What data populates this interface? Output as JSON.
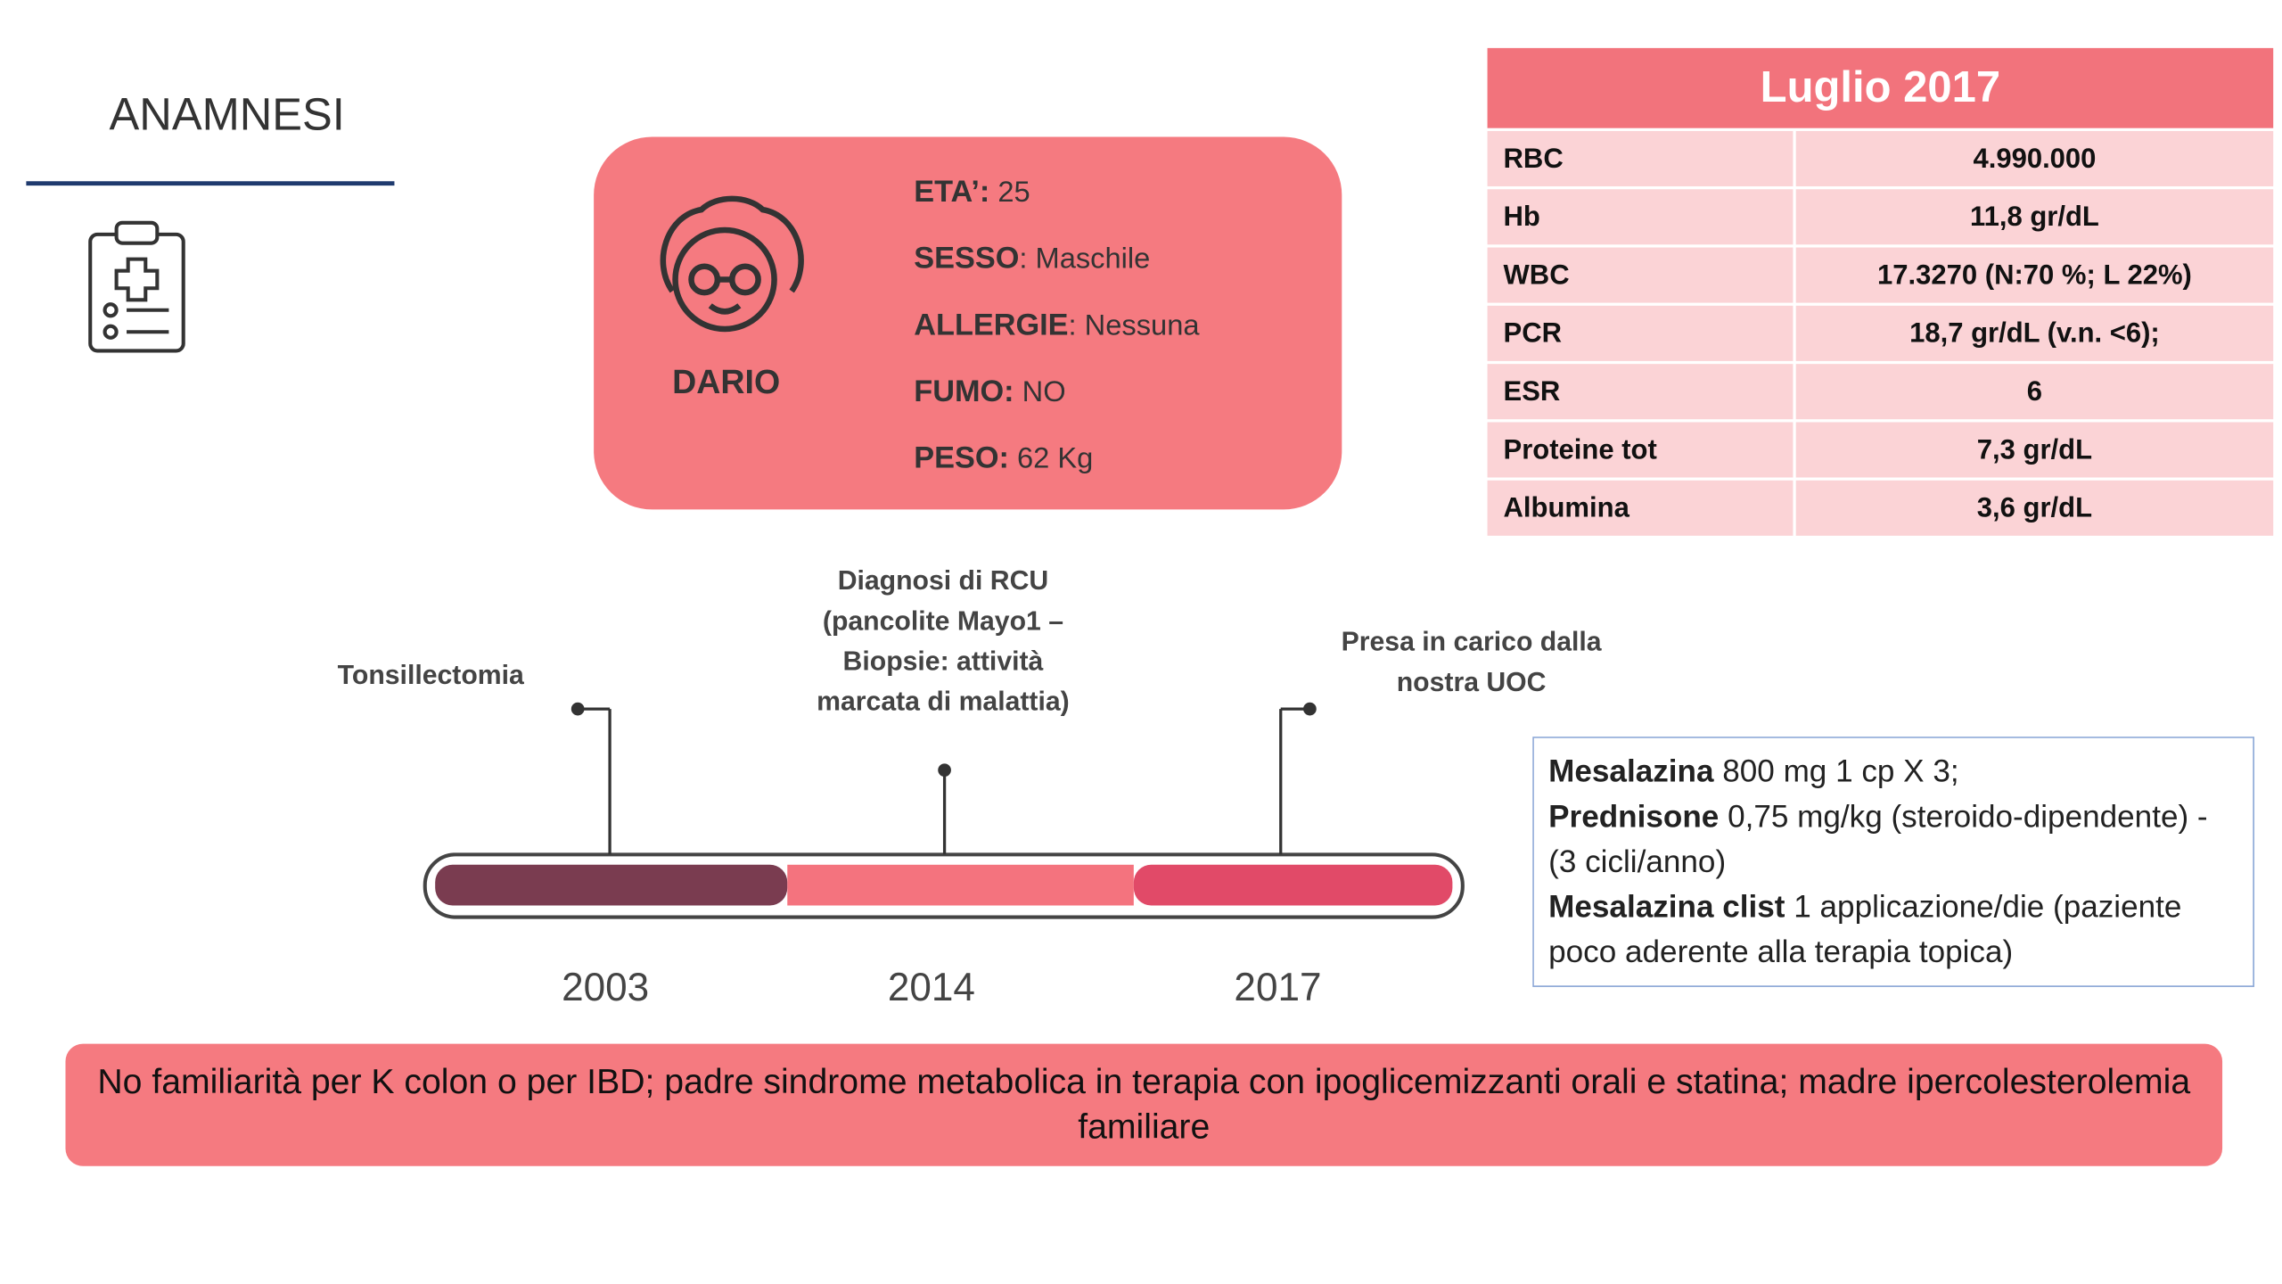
{
  "header": {
    "title": "ANAMNESI"
  },
  "patient": {
    "name": "DARIO",
    "fields": [
      {
        "label": "ETA’:",
        "value": " 25"
      },
      {
        "label": "SESSO",
        "value": ": Maschile"
      },
      {
        "label": "ALLERGIE",
        "value": ": Nessuna"
      },
      {
        "label": "FUMO:",
        "value": " NO"
      },
      {
        "label": "PESO:",
        "value": " 62 Kg"
      }
    ]
  },
  "lab_table": {
    "title": "Luglio 2017",
    "rows": [
      [
        "RBC",
        "4.990.000"
      ],
      [
        "Hb",
        "11,8 gr/dL"
      ],
      [
        "WBC",
        "17.3270 (N:70 %; L 22%)"
      ],
      [
        "PCR",
        "18,7 gr/dL (v.n. <6);"
      ],
      [
        "ESR",
        "6"
      ],
      [
        "Proteine tot",
        "7,3 gr/dL"
      ],
      [
        "Albumina",
        "3,6 gr/dL"
      ]
    ]
  },
  "timeline": {
    "events": [
      {
        "year": "2003",
        "lines": [
          "Tonsillectomia"
        ]
      },
      {
        "year": "2014",
        "lines": [
          "Diagnosi di RCU",
          "(pancolite Mayo1 –",
          "Biopsie: attività",
          "marcata di malattia)"
        ]
      },
      {
        "year": "2017",
        "lines": [
          "Presa in carico dalla",
          "nostra UOC"
        ]
      }
    ]
  },
  "therapy": [
    {
      "bold": "Mesalazina",
      "text": " 800 mg  1 cp X 3;"
    },
    {
      "bold": "Prednisone",
      "text": " 0,75 mg/kg (steroido-dipendente) - (3 cicli/anno)"
    },
    {
      "bold": "Mesalazina clist",
      "text": " 1 applicazione/die (paziente poco aderente alla terapia topica)"
    }
  ],
  "footer": {
    "text": "No familiarità per K colon o per IBD; padre sindrome metabolica in terapia con ipoglicemizzanti orali e statina; madre ipercolesterolemia familiare"
  }
}
